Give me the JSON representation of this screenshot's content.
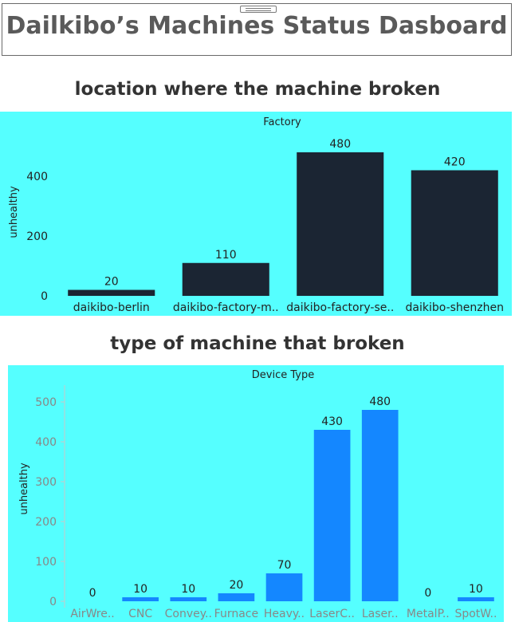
{
  "header": {
    "title": "Dailkibo’s Machines Status Dasboard"
  },
  "colors": {
    "panel_bg": "#55ffff",
    "bar1": "#1b2533",
    "bar2": "#1487ff"
  },
  "chart_data": [
    {
      "type": "bar",
      "title": "location where the machine broken",
      "subtitle": "Factory",
      "ylabel": "unhealthy",
      "xlabel": "",
      "categories": [
        "daikibo-berlin",
        "daikibo-factory-m..",
        "daikibo-factory-se..",
        "daikibo-shenzhen"
      ],
      "values": [
        20,
        110,
        480,
        420
      ],
      "yticks": [
        0,
        200,
        400
      ],
      "ylim": [
        0,
        520
      ],
      "grid": false,
      "legend": "none"
    },
    {
      "type": "bar",
      "title": "type of machine that broken",
      "subtitle": "Device Type",
      "ylabel": "unhealthy",
      "xlabel": "",
      "categories": [
        "AirWre..",
        "CNC",
        "Convey..",
        "Furnace",
        "Heavy..",
        "LaserC..",
        "Laser..",
        "MetalP..",
        "SpotW.."
      ],
      "values": [
        0,
        10,
        10,
        20,
        70,
        430,
        480,
        0,
        10
      ],
      "yticks": [
        0,
        100,
        200,
        300,
        400,
        500
      ],
      "ylim": [
        0,
        530
      ],
      "grid": false,
      "legend": "none"
    }
  ]
}
